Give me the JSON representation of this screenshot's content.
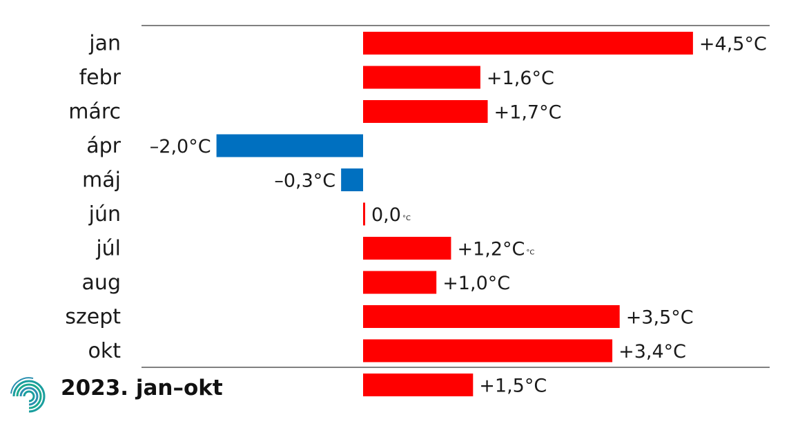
{
  "chart_data": {
    "type": "bar",
    "orientation": "horizontal",
    "categories": [
      "jan",
      "febr",
      "márc",
      "ápr",
      "máj",
      "jún",
      "júl",
      "aug",
      "szept",
      "okt"
    ],
    "values": [
      4.5,
      1.6,
      1.7,
      -2.0,
      -0.3,
      0.0,
      1.2,
      1.0,
      3.5,
      3.4
    ],
    "value_labels": [
      "+4,5°C",
      "+1,6°C",
      "+1,7°C",
      "–2,0°C",
      "–0,3°C",
      "0,0",
      "+1,2°C",
      "+1,0°C",
      "+3,5°C",
      "+3,4°C"
    ],
    "unit_small": "°C",
    "unit_small_after": [
      "jún",
      "júl"
    ],
    "total": {
      "label": "2023. jan–okt",
      "value": 1.5,
      "value_label": "+1,5°C"
    },
    "xlim": [
      -3.0,
      5.5
    ],
    "grid": false,
    "colors": {
      "positive": "#ff0000",
      "negative": "#0070c0",
      "logo": "#1a9e9e"
    }
  }
}
